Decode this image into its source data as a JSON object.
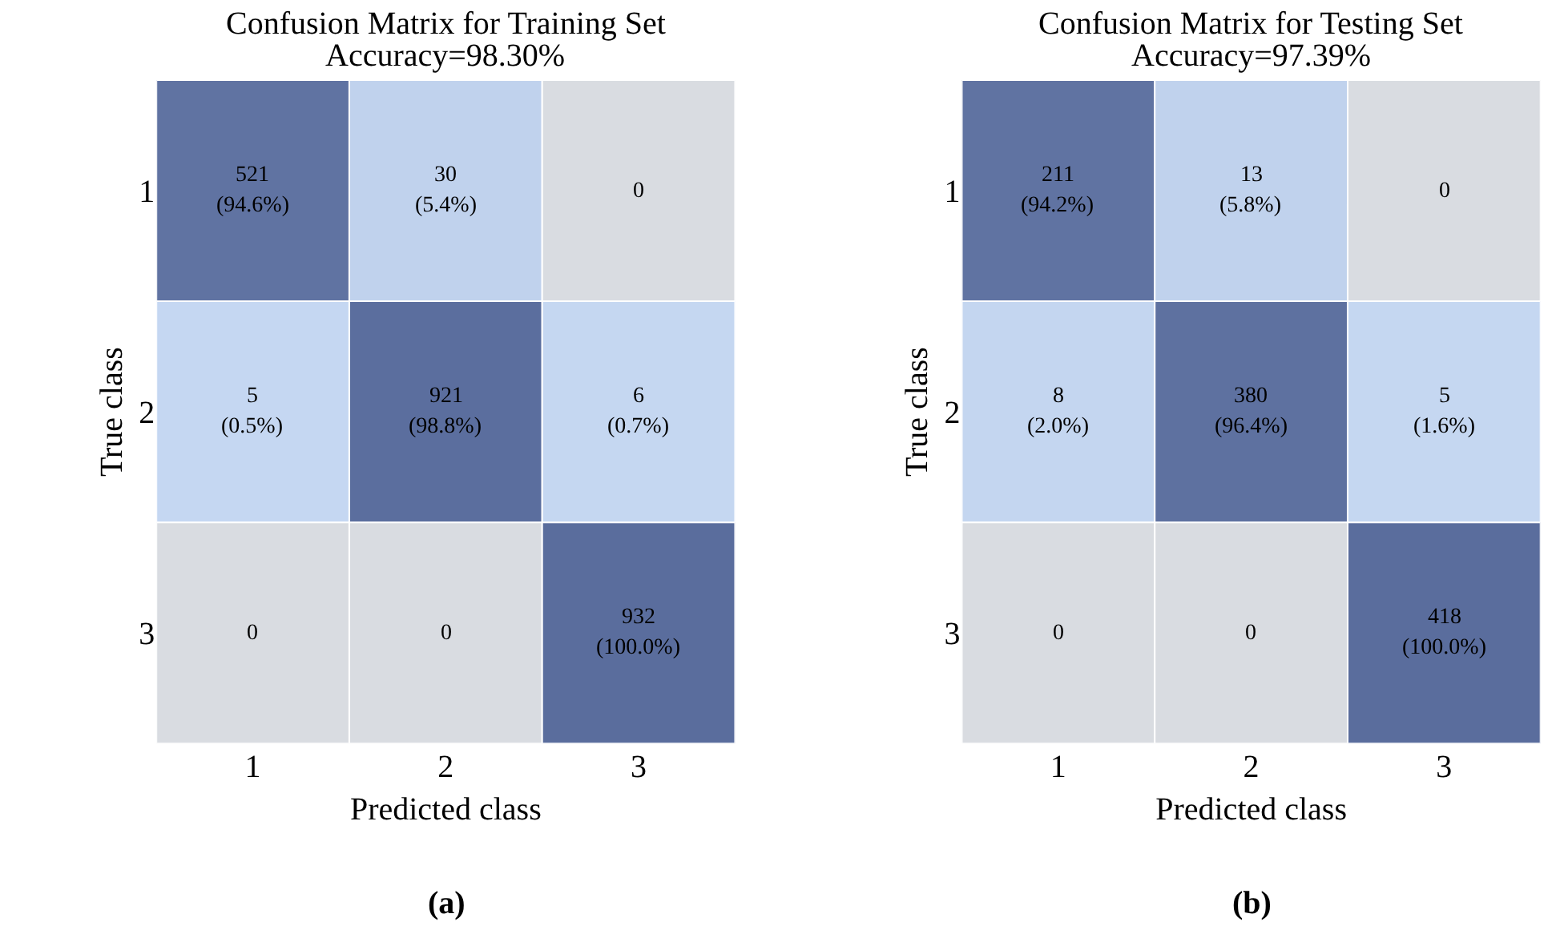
{
  "chart_data": [
    {
      "type": "heatmap",
      "title": "Confusion Matrix for Training Set",
      "subtitle": "Accuracy=98.30%",
      "xlabel": "Predicted class",
      "ylabel": "True class",
      "categories": [
        "1",
        "2",
        "3"
      ],
      "y_categories": [
        "1",
        "2",
        "3"
      ],
      "cells": [
        [
          521,
          30,
          0
        ],
        [
          5,
          921,
          6
        ],
        [
          0,
          0,
          932
        ]
      ],
      "data_labels": true,
      "annotations": [
        "(94.6%)",
        "(5.4%)",
        "(0.5%)",
        "(98.8%)",
        "(0.7%)",
        "(100.0%)",
        "(a)"
      ]
    },
    {
      "type": "heatmap",
      "title": "Confusion Matrix for Testing Set",
      "subtitle": "Accuracy=97.39%",
      "xlabel": "Predicted class",
      "ylabel": "True class",
      "categories": [
        "1",
        "2",
        "3"
      ],
      "y_categories": [
        "1",
        "2",
        "3"
      ],
      "cells": [
        [
          211,
          13,
          0
        ],
        [
          8,
          380,
          5
        ],
        [
          0,
          0,
          418
        ]
      ],
      "data_labels": true,
      "annotations": [
        "(94.2%)",
        "(5.8%)",
        "(2.0%)",
        "(96.4%)",
        "(1.6%)",
        "(100.0%)",
        "(b)"
      ]
    }
  ]
}
